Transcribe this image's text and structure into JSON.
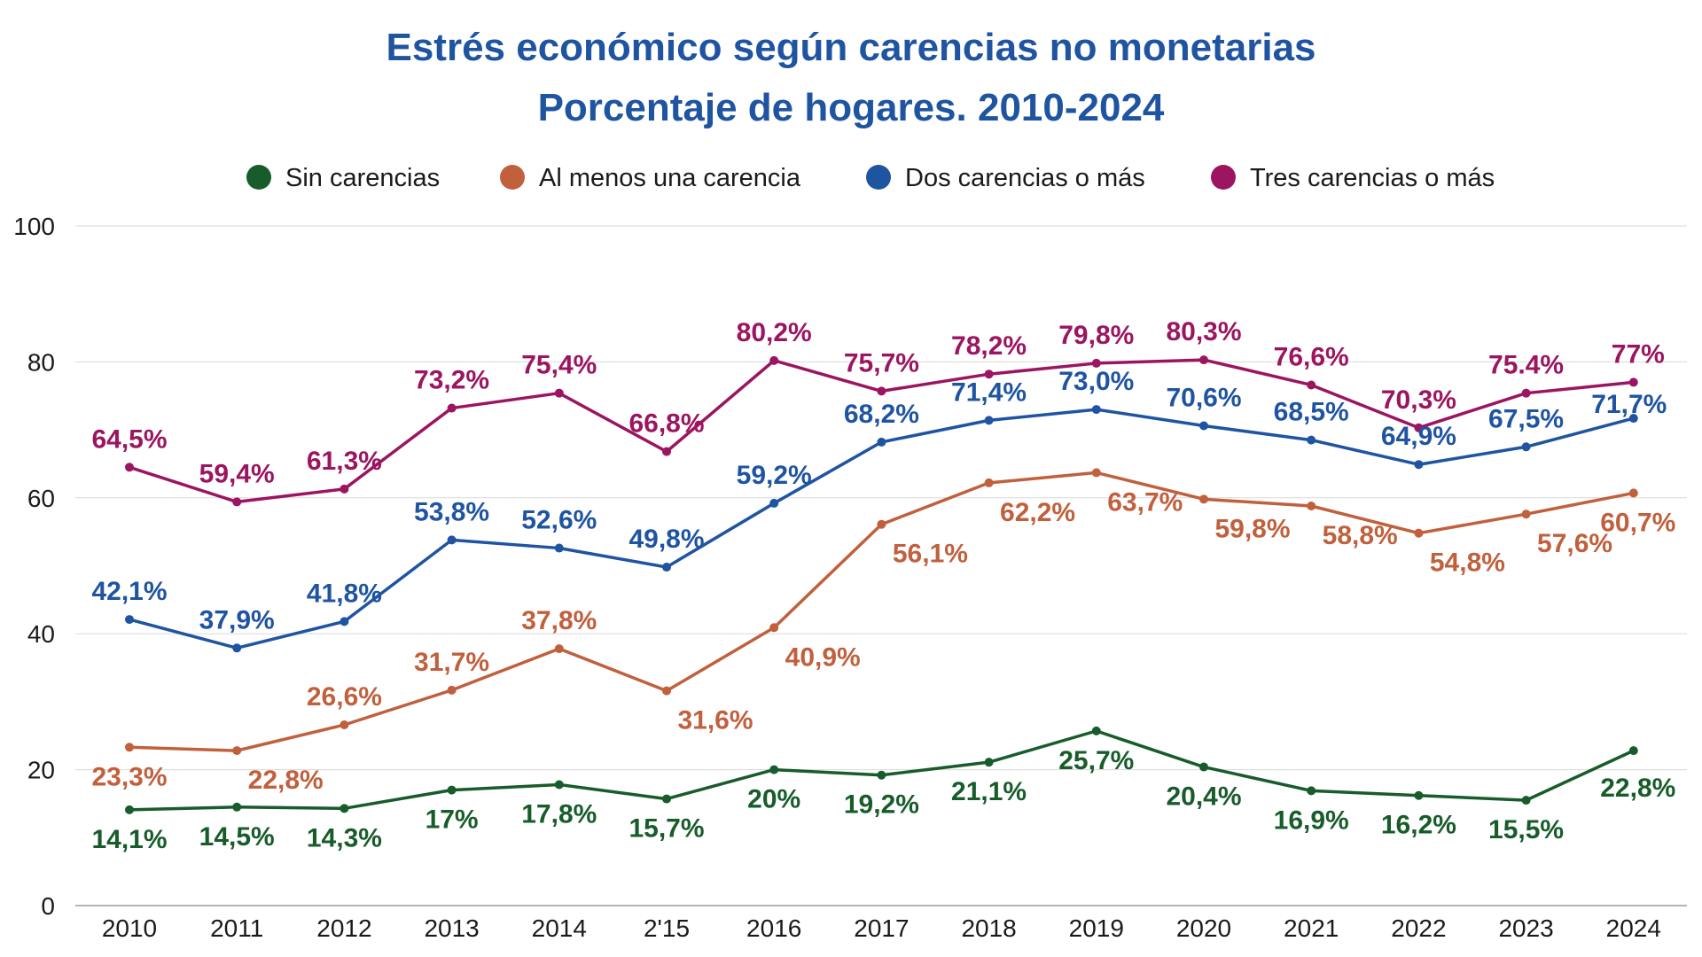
{
  "chart_data": {
    "type": "line",
    "title_line1": "Estrés económico según carencias no monetarias",
    "title_line2": "Porcentaje de hogares. 2010-2024",
    "xlabel": "",
    "ylabel": "",
    "ylim": [
      0,
      100
    ],
    "yticks": [
      "0",
      "20",
      "40",
      "60",
      "80",
      "100"
    ],
    "grid": true,
    "legend_position": "top-center",
    "categories": [
      "2010",
      "2011",
      "2012",
      "2013",
      "2014",
      "2'15",
      "2016",
      "2017",
      "2018",
      "2019",
      "2020",
      "2021",
      "2022",
      "2023",
      "2024"
    ],
    "series": [
      {
        "name": "Sin carencias",
        "color": "#175c2a",
        "values": [
          14.1,
          14.5,
          14.3,
          17,
          17.8,
          15.7,
          20,
          19.2,
          21.1,
          25.7,
          20.4,
          16.9,
          16.2,
          15.5,
          22.8
        ],
        "labels": [
          "14,1%",
          "14,5%",
          "14,3%",
          "17%",
          "17,8%",
          "15,7%",
          "20%",
          "19,2%",
          "21,1%",
          "25,7%",
          "20,4%",
          "16,9%",
          "16,2%",
          "15,5%",
          "22,8%"
        ]
      },
      {
        "name": "Al menos una carencia",
        "color": "#c0603d",
        "values": [
          23.3,
          22.8,
          26.6,
          31.7,
          37.8,
          31.6,
          40.9,
          56.1,
          62.2,
          63.7,
          59.8,
          58.8,
          54.8,
          57.6,
          60.7
        ],
        "labels": [
          "23,3%",
          "22,8%",
          "26,6%",
          "31,7%",
          "37,8%",
          "31,6%",
          "40,9%",
          "56,1%",
          "62,2%",
          "63,7%",
          "59,8%",
          "58,8%",
          "54,8%",
          "57,6%",
          "60,7%"
        ]
      },
      {
        "name": "Dos carencias o más",
        "color": "#1f54a1",
        "values": [
          42.1,
          37.9,
          41.8,
          53.8,
          52.6,
          49.8,
          59.2,
          68.2,
          71.4,
          73.0,
          70.6,
          68.5,
          64.9,
          67.5,
          71.7
        ],
        "labels": [
          "42,1%",
          "37,9%",
          "41,8%",
          "53,8%",
          "52,6%",
          "49,8%",
          "59,2%",
          "68,2%",
          "71,4%",
          "73,0%",
          "70,6%",
          "68,5%",
          "64,9%",
          "67,5%",
          "71,7%"
        ]
      },
      {
        "name": "Tres carencias o más",
        "color": "#9b1560",
        "values": [
          64.5,
          59.4,
          61.3,
          73.2,
          75.4,
          66.8,
          80.2,
          75.7,
          78.2,
          79.8,
          80.3,
          76.6,
          70.3,
          75.4,
          77
        ],
        "labels": [
          "64,5%",
          "59,4%",
          "61,3%",
          "73,2%",
          "75,4%",
          "66,8%",
          "80,2%",
          "75,7%",
          "78,2%",
          "79,8%",
          "80,3%",
          "76,6%",
          "70,3%",
          "75.4%",
          "77%"
        ]
      }
    ]
  }
}
